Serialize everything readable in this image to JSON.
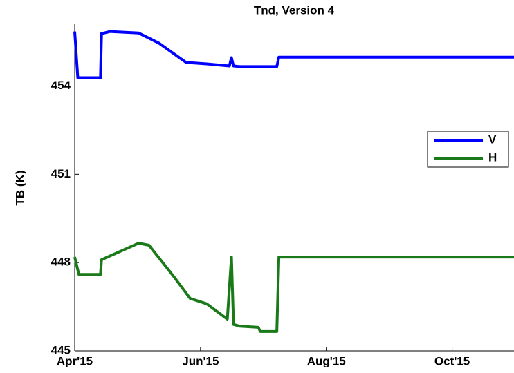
{
  "chart_data": {
    "type": "line",
    "title": "Tnd, Version 4",
    "ylabel": "TB (K)",
    "xlim": [
      0,
      213
    ],
    "xticks": [
      {
        "value": 0,
        "label": "Apr'15"
      },
      {
        "value": 61,
        "label": "Jun'15"
      },
      {
        "value": 122,
        "label": "Aug'15"
      },
      {
        "value": 183,
        "label": "Oct'15"
      }
    ],
    "ylim": [
      445,
      456.1
    ],
    "yticks": [
      445,
      448,
      451,
      454
    ],
    "legend": "center right",
    "series": [
      {
        "name": "V",
        "color": "#0000ff",
        "x": [
          0,
          1.5,
          12.5,
          13,
          17,
          31,
          41,
          54,
          64,
          75,
          76,
          77,
          80,
          98,
          99,
          213
        ],
        "values": [
          455.85,
          454.28,
          454.28,
          455.78,
          455.85,
          455.8,
          455.45,
          454.8,
          454.75,
          454.68,
          454.96,
          454.68,
          454.66,
          454.66,
          454.98,
          454.98
        ]
      },
      {
        "name": "H",
        "color": "#1a7a1a",
        "x": [
          0,
          2,
          12.5,
          13,
          31,
          36,
          48,
          56,
          64,
          74,
          76,
          77,
          80,
          89,
          90,
          98,
          99,
          213
        ],
        "values": [
          448.19,
          447.6,
          447.6,
          448.1,
          448.66,
          448.59,
          447.53,
          446.78,
          446.6,
          446.08,
          448.19,
          445.9,
          445.84,
          445.8,
          445.66,
          445.66,
          448.19,
          448.19
        ]
      }
    ]
  }
}
